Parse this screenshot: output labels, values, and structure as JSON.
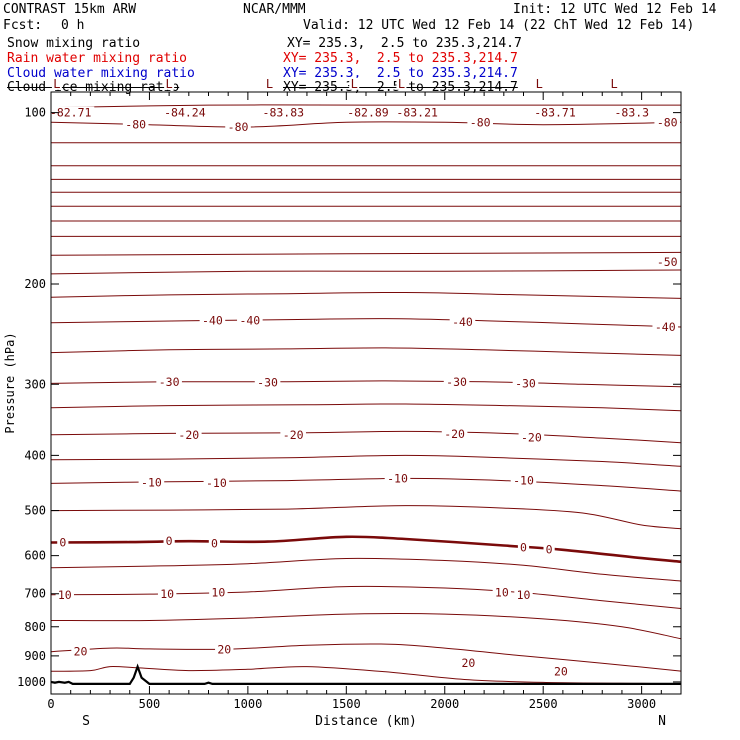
{
  "header": {
    "model": "CONTRAST 15km ARW",
    "org": "NCAR/MMM",
    "init": "Init: 12 UTC Wed 12 Feb 14",
    "fcst_label": "Fcst:",
    "fcst_value": "0 h",
    "valid": "Valid: 12 UTC Wed 12 Feb 14 (22 ChT Wed 12 Feb 14)"
  },
  "legend_rows": [
    {
      "label": "Snow mixing ratio",
      "xy": "XY= 235.3,  2.5 to 235.3,214.7",
      "color": "#000000"
    },
    {
      "label": "Rain water mixing ratio",
      "xy": "XY= 235.3,  2.5 to 235.3,214.7",
      "color": "#e00000"
    },
    {
      "label": "Cloud water mixing ratio",
      "xy": "XY= 235.3,  2.5 to 235.3,214.7",
      "color": "#0000cc"
    },
    {
      "label": "Cloud ice mixing ratio",
      "xy": "XY= 235.3,  2.5 to 235.3,214.7",
      "color": "#000000"
    }
  ],
  "colors": {
    "contour": "#7a0a0a",
    "terrain": "#000000",
    "axis": "#000000"
  },
  "chart_data": {
    "type": "line",
    "xlabel": "Distance (km)",
    "ylabel": "Pressure (hPa)",
    "xlim": [
      0,
      3200
    ],
    "ylim": [
      50,
      1050
    ],
    "y_scale": "log",
    "x_ticks": [
      0,
      500,
      1000,
      1500,
      2000,
      2500,
      3000
    ],
    "x_tick_labels": [
      "0",
      "500",
      "1000",
      "1500",
      "2000",
      "2500",
      "3000"
    ],
    "y_ticks": [
      100,
      200,
      300,
      400,
      500,
      600,
      700,
      800,
      900,
      1000
    ],
    "y_tick_labels": [
      "100",
      "200",
      "300",
      "400",
      "500",
      "600",
      "700",
      "800",
      "900",
      "1000"
    ],
    "x_end_labels": {
      "left": "S",
      "right": "N"
    },
    "low_markers": [
      {
        "x": 30,
        "p": 89,
        "label": "L"
      },
      {
        "x": 600,
        "p": 89,
        "label": "L"
      },
      {
        "x": 1110,
        "p": 89,
        "label": "L"
      },
      {
        "x": 1540,
        "p": 89,
        "label": "L"
      },
      {
        "x": 1780,
        "p": 89,
        "label": "L"
      },
      {
        "x": 2480,
        "p": 89,
        "label": "L"
      },
      {
        "x": 2860,
        "p": 89,
        "label": "L"
      }
    ],
    "min_labels": [
      {
        "x": 100,
        "p": 100,
        "label": "-82.71"
      },
      {
        "x": 680,
        "p": 100,
        "label": "-84.24"
      },
      {
        "x": 1180,
        "p": 100,
        "label": "-83.83"
      },
      {
        "x": 1610,
        "p": 100,
        "label": "-82.89"
      },
      {
        "x": 1860,
        "p": 100,
        "label": "-83.21"
      },
      {
        "x": 2560,
        "p": 100,
        "label": "-83.71"
      },
      {
        "x": 2950,
        "p": 100,
        "label": "-83.3"
      }
    ],
    "contour_labels": [
      {
        "x": 430,
        "p": 105,
        "label": "-80"
      },
      {
        "x": 950,
        "p": 106,
        "label": "-80"
      },
      {
        "x": 2180,
        "p": 104,
        "label": "-80"
      },
      {
        "x": 3130,
        "p": 104,
        "label": "-80"
      },
      {
        "x": 3130,
        "p": 183,
        "label": "-50"
      },
      {
        "x": 820,
        "p": 232,
        "label": "-40"
      },
      {
        "x": 1010,
        "p": 232,
        "label": "-40"
      },
      {
        "x": 2090,
        "p": 233,
        "label": "-40"
      },
      {
        "x": 3120,
        "p": 238,
        "label": "-40"
      },
      {
        "x": 600,
        "p": 297,
        "label": "-30"
      },
      {
        "x": 1100,
        "p": 298,
        "label": "-30"
      },
      {
        "x": 2060,
        "p": 297,
        "label": "-30"
      },
      {
        "x": 2410,
        "p": 299,
        "label": "-30"
      },
      {
        "x": 700,
        "p": 368,
        "label": "-20"
      },
      {
        "x": 1230,
        "p": 368,
        "label": "-20"
      },
      {
        "x": 2050,
        "p": 367,
        "label": "-20"
      },
      {
        "x": 2440,
        "p": 372,
        "label": "-20"
      },
      {
        "x": 510,
        "p": 446,
        "label": "-10"
      },
      {
        "x": 840,
        "p": 447,
        "label": "-10"
      },
      {
        "x": 1760,
        "p": 439,
        "label": "-10"
      },
      {
        "x": 2400,
        "p": 443,
        "label": "-10"
      },
      {
        "x": 60,
        "p": 569,
        "label": "0"
      },
      {
        "x": 600,
        "p": 566,
        "label": "0"
      },
      {
        "x": 830,
        "p": 571,
        "label": "0"
      },
      {
        "x": 2400,
        "p": 580,
        "label": "0"
      },
      {
        "x": 2530,
        "p": 585,
        "label": "0"
      },
      {
        "x": 70,
        "p": 703,
        "label": "10"
      },
      {
        "x": 590,
        "p": 701,
        "label": "10"
      },
      {
        "x": 850,
        "p": 697,
        "label": "10"
      },
      {
        "x": 2290,
        "p": 697,
        "label": "10"
      },
      {
        "x": 2400,
        "p": 703,
        "label": "10"
      },
      {
        "x": 150,
        "p": 885,
        "label": "20"
      },
      {
        "x": 880,
        "p": 877,
        "label": "20"
      },
      {
        "x": 2120,
        "p": 926,
        "label": "20"
      },
      {
        "x": 2590,
        "p": 958,
        "label": "20"
      }
    ],
    "series": [
      {
        "values": [
          [
            0,
            92
          ],
          [
            3200,
            92
          ]
        ]
      },
      {
        "values": [
          [
            0,
            98
          ],
          [
            800,
            97
          ],
          [
            1600,
            97
          ],
          [
            2400,
            97
          ],
          [
            3200,
            97
          ]
        ]
      },
      {
        "values": [
          [
            0,
            104
          ],
          [
            500,
            105
          ],
          [
            1000,
            106
          ],
          [
            1500,
            104
          ],
          [
            2000,
            104
          ],
          [
            2500,
            105
          ],
          [
            3200,
            104
          ]
        ]
      },
      {
        "values": [
          [
            0,
            113
          ],
          [
            3200,
            113
          ]
        ]
      },
      {
        "values": [
          [
            0,
            124
          ],
          [
            3200,
            124
          ]
        ]
      },
      {
        "values": [
          [
            0,
            131
          ],
          [
            3200,
            131
          ]
        ]
      },
      {
        "values": [
          [
            0,
            138
          ],
          [
            3200,
            138
          ]
        ]
      },
      {
        "values": [
          [
            0,
            146
          ],
          [
            3200,
            146
          ]
        ]
      },
      {
        "values": [
          [
            0,
            155
          ],
          [
            3200,
            155
          ]
        ]
      },
      {
        "values": [
          [
            0,
            165
          ],
          [
            3200,
            165
          ]
        ]
      },
      {
        "values": [
          [
            0,
            178
          ],
          [
            1500,
            177
          ],
          [
            3200,
            176
          ]
        ]
      },
      {
        "values": [
          [
            0,
            192
          ],
          [
            1000,
            190
          ],
          [
            2000,
            190
          ],
          [
            3200,
            189
          ]
        ]
      },
      {
        "values": [
          [
            0,
            211
          ],
          [
            600,
            209
          ],
          [
            1200,
            208
          ],
          [
            1800,
            207
          ],
          [
            2400,
            209
          ],
          [
            3200,
            212
          ]
        ]
      },
      {
        "values": [
          [
            0,
            234
          ],
          [
            700,
            232
          ],
          [
            1200,
            231
          ],
          [
            1700,
            230
          ],
          [
            2200,
            232
          ],
          [
            2700,
            235
          ],
          [
            3200,
            238
          ]
        ]
      },
      {
        "values": [
          [
            0,
            264
          ],
          [
            600,
            261
          ],
          [
            1200,
            260
          ],
          [
            1700,
            259
          ],
          [
            2200,
            261
          ],
          [
            2700,
            264
          ],
          [
            3200,
            267
          ]
        ]
      },
      {
        "values": [
          [
            0,
            299
          ],
          [
            600,
            297
          ],
          [
            1200,
            297
          ],
          [
            1700,
            296
          ],
          [
            2200,
            297
          ],
          [
            2700,
            300
          ],
          [
            3200,
            303
          ]
        ]
      },
      {
        "values": [
          [
            0,
            330
          ],
          [
            600,
            327
          ],
          [
            1300,
            326
          ],
          [
            1800,
            325
          ],
          [
            2300,
            327
          ],
          [
            2800,
            330
          ],
          [
            3200,
            334
          ]
        ]
      },
      {
        "values": [
          [
            0,
            368
          ],
          [
            600,
            366
          ],
          [
            1300,
            365
          ],
          [
            1800,
            363
          ],
          [
            2300,
            366
          ],
          [
            2800,
            373
          ],
          [
            3200,
            380
          ]
        ]
      },
      {
        "values": [
          [
            0,
            407
          ],
          [
            600,
            406
          ],
          [
            1200,
            404
          ],
          [
            1800,
            400
          ],
          [
            2300,
            404
          ],
          [
            2800,
            410
          ],
          [
            3200,
            418
          ]
        ]
      },
      {
        "values": [
          [
            0,
            448
          ],
          [
            600,
            445
          ],
          [
            1200,
            443
          ],
          [
            1800,
            439
          ],
          [
            2300,
            443
          ],
          [
            2800,
            452
          ],
          [
            3200,
            462
          ]
        ]
      },
      {
        "values": [
          [
            0,
            500
          ],
          [
            600,
            499
          ],
          [
            1200,
            497
          ],
          [
            1800,
            490
          ],
          [
            2300,
            495
          ],
          [
            2700,
            505
          ],
          [
            3000,
            530
          ],
          [
            3200,
            538
          ]
        ]
      },
      {
        "values": [
          [
            0,
            569
          ],
          [
            400,
            568
          ],
          [
            700,
            566
          ],
          [
            1100,
            567
          ],
          [
            1500,
            556
          ],
          [
            1800,
            561
          ],
          [
            2300,
            576
          ],
          [
            2600,
            586
          ],
          [
            3000,
            606
          ],
          [
            3200,
            615
          ]
        ],
        "bold": true
      },
      {
        "values": [
          [
            0,
            630
          ],
          [
            500,
            626
          ],
          [
            1000,
            620
          ],
          [
            1500,
            607
          ],
          [
            2000,
            612
          ],
          [
            2400,
            624
          ],
          [
            2800,
            647
          ],
          [
            3200,
            665
          ]
        ]
      },
      {
        "values": [
          [
            0,
            703
          ],
          [
            500,
            701
          ],
          [
            1000,
            695
          ],
          [
            1500,
            680
          ],
          [
            2000,
            684
          ],
          [
            2400,
            697
          ],
          [
            2800,
            720
          ],
          [
            3200,
            743
          ]
        ]
      },
      {
        "values": [
          [
            0,
            780
          ],
          [
            500,
            780
          ],
          [
            1000,
            772
          ],
          [
            1500,
            760
          ],
          [
            2000,
            760
          ],
          [
            2500,
            775
          ],
          [
            2900,
            800
          ],
          [
            3200,
            840
          ]
        ]
      },
      {
        "values": [
          [
            0,
            885
          ],
          [
            300,
            872
          ],
          [
            500,
            875
          ],
          [
            900,
            876
          ],
          [
            1300,
            862
          ],
          [
            1700,
            858
          ],
          [
            2000,
            872
          ],
          [
            2400,
            900
          ],
          [
            2800,
            927
          ],
          [
            3200,
            957
          ]
        ]
      },
      {
        "values": [
          [
            0,
            958
          ],
          [
            200,
            955
          ],
          [
            300,
            940
          ],
          [
            450,
            945
          ],
          [
            700,
            955
          ],
          [
            1000,
            950
          ],
          [
            1300,
            940
          ],
          [
            1700,
            960
          ],
          [
            2100,
            990
          ],
          [
            2500,
            1002
          ],
          [
            3000,
            1006
          ],
          [
            3200,
            1008
          ]
        ]
      }
    ],
    "terrain": [
      [
        0,
        1000
      ],
      [
        20,
        1003
      ],
      [
        40,
        1000
      ],
      [
        70,
        1003
      ],
      [
        90,
        1000
      ],
      [
        110,
        1008
      ],
      [
        400,
        1008
      ],
      [
        420,
        983
      ],
      [
        440,
        940
      ],
      [
        460,
        983
      ],
      [
        500,
        1008
      ],
      [
        780,
        1008
      ],
      [
        800,
        1003
      ],
      [
        820,
        1008
      ],
      [
        3200,
        1008
      ]
    ]
  }
}
